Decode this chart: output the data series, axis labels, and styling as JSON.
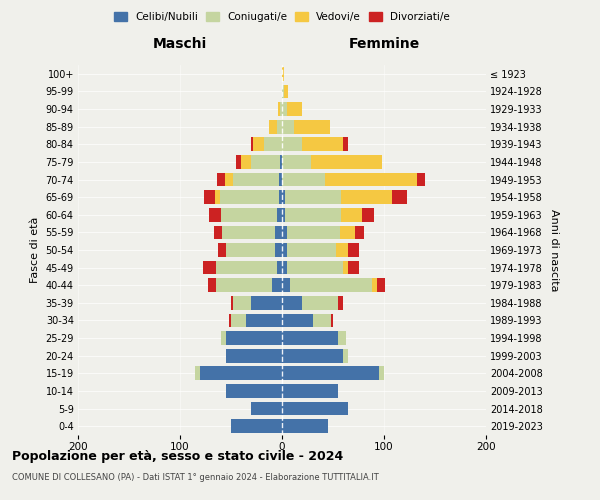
{
  "age_groups": [
    "0-4",
    "5-9",
    "10-14",
    "15-19",
    "20-24",
    "25-29",
    "30-34",
    "35-39",
    "40-44",
    "45-49",
    "50-54",
    "55-59",
    "60-64",
    "65-69",
    "70-74",
    "75-79",
    "80-84",
    "85-89",
    "90-94",
    "95-99",
    "100+"
  ],
  "birth_years": [
    "2019-2023",
    "2014-2018",
    "2009-2013",
    "2004-2008",
    "1999-2003",
    "1994-1998",
    "1989-1993",
    "1984-1988",
    "1979-1983",
    "1974-1978",
    "1969-1973",
    "1964-1968",
    "1959-1963",
    "1954-1958",
    "1949-1953",
    "1944-1948",
    "1939-1943",
    "1934-1938",
    "1929-1933",
    "1924-1928",
    "≤ 1923"
  ],
  "males": {
    "celibi": [
      50,
      30,
      55,
      80,
      55,
      55,
      35,
      30,
      10,
      5,
      7,
      7,
      5,
      3,
      3,
      2,
      0,
      0,
      0,
      0,
      0
    ],
    "coniugati": [
      0,
      0,
      0,
      5,
      0,
      5,
      15,
      18,
      55,
      60,
      48,
      52,
      55,
      58,
      45,
      28,
      18,
      5,
      2,
      0,
      0
    ],
    "vedovi": [
      0,
      0,
      0,
      0,
      0,
      0,
      0,
      0,
      0,
      0,
      0,
      0,
      0,
      5,
      8,
      10,
      10,
      8,
      2,
      0,
      0
    ],
    "divorziati": [
      0,
      0,
      0,
      0,
      0,
      0,
      2,
      2,
      8,
      12,
      8,
      8,
      12,
      10,
      8,
      5,
      2,
      0,
      0,
      0,
      0
    ]
  },
  "females": {
    "nubili": [
      45,
      65,
      55,
      95,
      60,
      55,
      30,
      20,
      8,
      5,
      5,
      5,
      3,
      3,
      0,
      0,
      0,
      0,
      0,
      0,
      0
    ],
    "coniugate": [
      0,
      0,
      0,
      5,
      5,
      8,
      18,
      35,
      80,
      55,
      48,
      52,
      55,
      55,
      42,
      28,
      20,
      12,
      5,
      2,
      0
    ],
    "vedove": [
      0,
      0,
      0,
      0,
      0,
      0,
      0,
      0,
      5,
      5,
      12,
      15,
      20,
      50,
      90,
      70,
      40,
      35,
      15,
      4,
      2
    ],
    "divorziate": [
      0,
      0,
      0,
      0,
      0,
      0,
      2,
      5,
      8,
      10,
      10,
      8,
      12,
      15,
      8,
      0,
      5,
      0,
      0,
      0,
      0
    ]
  },
  "colors": {
    "celibi": "#4472a8",
    "coniugati": "#c5d5a0",
    "vedovi": "#f5c842",
    "divorziati": "#cc2222"
  },
  "legend_labels": [
    "Celibi/Nubili",
    "Coniugati/e",
    "Vedovi/e",
    "Divorziati/e"
  ],
  "title": "Popolazione per età, sesso e stato civile - 2024",
  "subtitle": "COMUNE DI COLLESANO (PA) - Dati ISTAT 1° gennaio 2024 - Elaborazione TUTTITALIA.IT",
  "xlabel_left": "Maschi",
  "xlabel_right": "Femmine",
  "ylabel_left": "Fasce di età",
  "ylabel_right": "Anni di nascita",
  "xlim": 200,
  "background_color": "#f0f0eb"
}
